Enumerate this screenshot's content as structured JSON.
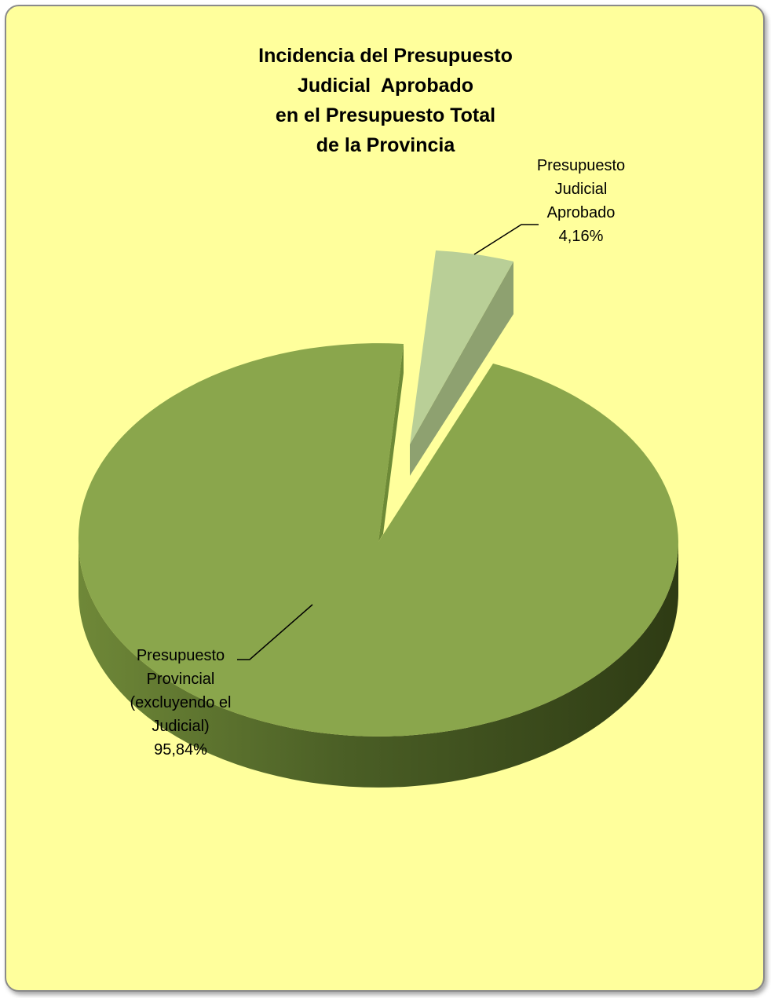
{
  "chart_data": {
    "type": "pie",
    "style": "3d-exploded",
    "title_lines": [
      "Incidencia del Presupuesto",
      "Judicial  Aprobado",
      "en el Presupuesto Total",
      "de la Provincia"
    ],
    "slices": [
      {
        "label_lines": [
          "Presupuesto",
          "Judicial",
          "Aprobado"
        ],
        "value": 4.16,
        "value_label": "4,16%",
        "color": "#b9cf97",
        "exploded": true
      },
      {
        "label_lines": [
          "Presupuesto",
          "Provincial",
          "(excluyendo el",
          "Judicial)"
        ],
        "value": 95.84,
        "value_label": "95,84%",
        "color": "#8aa64c",
        "exploded": false
      }
    ],
    "background_color": "#ffff9c"
  }
}
